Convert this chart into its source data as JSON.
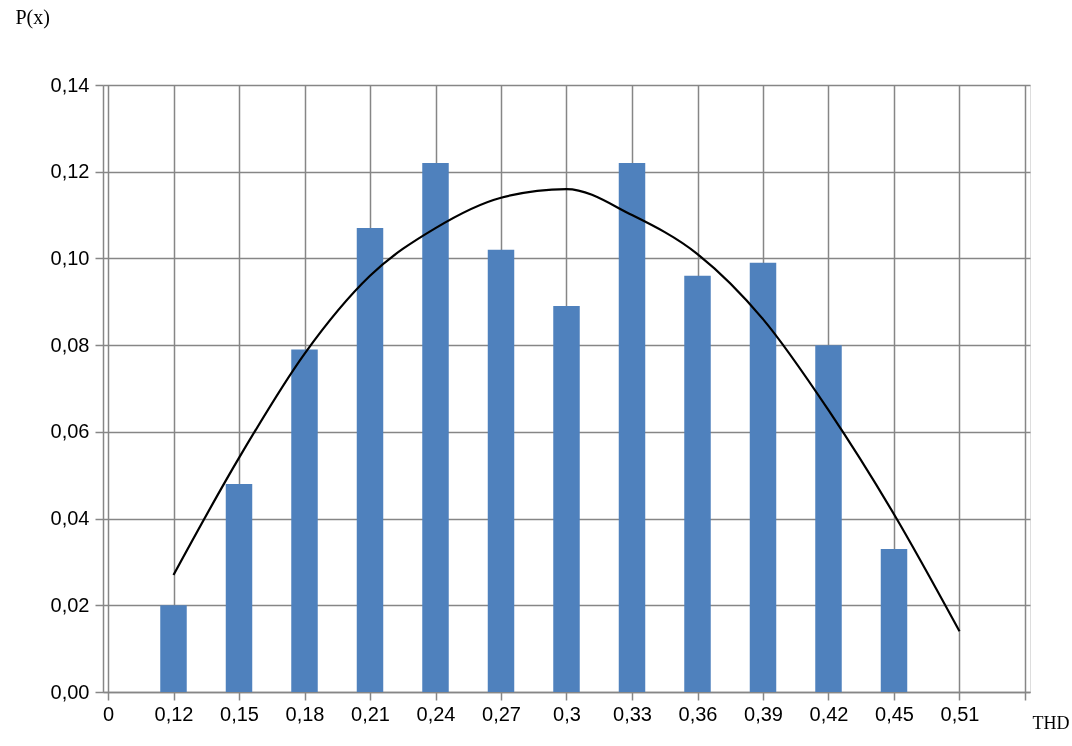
{
  "chart_data": {
    "type": "bar",
    "xlabel": "THD",
    "ylabel": "P(x)",
    "categories": [
      "0",
      "0,12",
      "0,15",
      "0,18",
      "0,21",
      "0,24",
      "0,27",
      "0,3",
      "0,33",
      "0,36",
      "0,39",
      "0,42",
      "0,45",
      "0,51",
      null
    ],
    "ylim": [
      0,
      0.14
    ],
    "yticks": [
      {
        "value": 0,
        "label": "0,00"
      },
      {
        "value": 0.02,
        "label": "0,02"
      },
      {
        "value": 0.04,
        "label": "0,04"
      },
      {
        "value": 0.06,
        "label": "0,06"
      },
      {
        "value": 0.08,
        "label": "0,08"
      },
      {
        "value": 0.1,
        "label": "0,10"
      },
      {
        "value": 0.12,
        "label": "0,12"
      },
      {
        "value": 0.14,
        "label": "0,14"
      }
    ],
    "grid": true,
    "series": [
      {
        "color": "#4f81bd",
        "values": [
          null,
          0.02,
          0.048,
          0.079,
          0.107,
          0.122,
          0.102,
          0.089,
          0.122,
          0.096,
          0.099,
          0.08,
          0.033,
          null,
          null
        ]
      },
      {
        "type": "line",
        "color": "#000000",
        "values": [
          null,
          0.027,
          0.054,
          0.078,
          0.096,
          0.107,
          0.114,
          0.116,
          0.11,
          0.101,
          0.086,
          0.065,
          0.041,
          0.014,
          null
        ]
      }
    ]
  }
}
